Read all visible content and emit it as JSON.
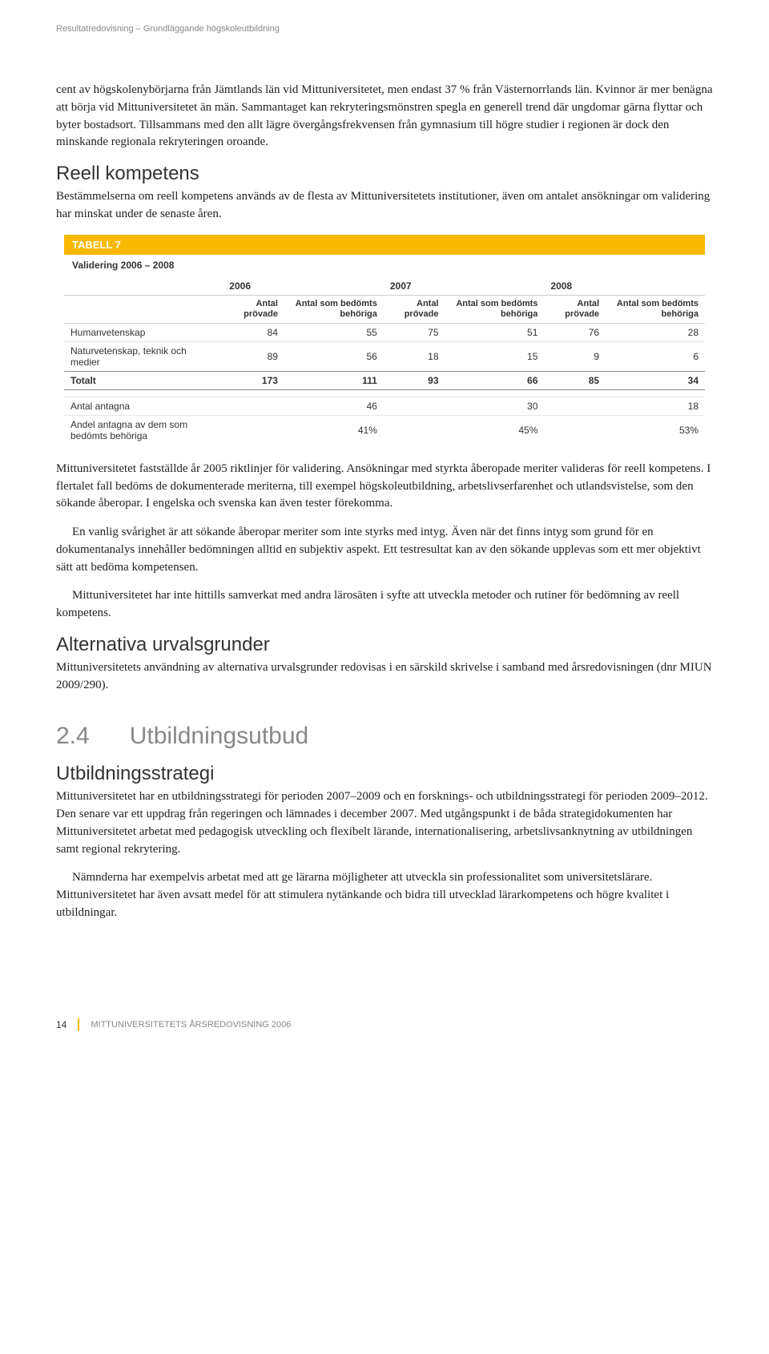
{
  "header": "Resultatredovisning – Grundläggande högskoleutbildning",
  "para1": "cent av högskolenybörjarna från Jämtlands län vid Mittuniversitetet, men endast 37 % från Västernorrlands län. Kvinnor är mer benägna att börja vid Mittuniversitetet än män. Sammantaget kan rekryteringsmönstren spegla en generell trend där ungdomar gärna flyttar och byter bostadsort. Tillsammans med den allt lägre övergångsfrekvensen från gymnasium till högre studier i regionen är dock den minskande regionala rekryteringen oroande.",
  "h2a": "Reell kompetens",
  "para2": "Bestämmelserna om reell kompetens används av de flesta av Mittuniversitetets institutioner, även om antalet ansökningar om validering har minskat under de senaste åren.",
  "table": {
    "title": "TABELL 7",
    "subtitle": "Validering 2006 – 2008",
    "years": [
      "2006",
      "2007",
      "2008"
    ],
    "colA": "Antal prövade",
    "colB": "Antal som bedömts behöriga",
    "rows": [
      {
        "label": "Humanvetenskap",
        "v": [
          "84",
          "55",
          "75",
          "51",
          "76",
          "28"
        ]
      },
      {
        "label": "Naturvetenskap, teknik och medier",
        "v": [
          "89",
          "56",
          "18",
          "15",
          "9",
          "6"
        ]
      }
    ],
    "total": {
      "label": "Totalt",
      "v": [
        "173",
        "111",
        "93",
        "66",
        "85",
        "34"
      ]
    },
    "extra1": {
      "label": "Antal antagna",
      "v": [
        "46",
        "30",
        "18"
      ]
    },
    "extra2": {
      "label": "Andel antagna av dem som bedömts behöriga",
      "v": [
        "41%",
        "45%",
        "53%"
      ]
    }
  },
  "para3": "Mittuniversitetet fastställde år 2005 riktlinjer för validering. Ansökningar med styrkta åberopade meriter valideras för reell kompetens. I flertalet fall bedöms de dokumenterade meriterna, till exempel högskoleutbildning, arbetslivserfarenhet och utlandsvistelse, som den sökande åberopar. I engelska och svenska kan även tester förekomma.",
  "para3b": "En vanlig svårighet är att sökande åberopar meriter som inte styrks med intyg. Även när det finns intyg som grund för en dokumentanalys innehåller bedömningen alltid en subjektiv aspekt. Ett testresultat kan av den sökande upplevas som ett mer objektivt sätt att bedöma kompetensen.",
  "para3c": "Mittuniversitetet har inte hittills samverkat med andra lärosäten i syfte att utveckla metoder och rutiner för bedömning av reell kompetens.",
  "h2b": "Alternativa urvalsgrunder",
  "para4": "Mittuniversitetets användning av alternativa urvalsgrunder redovisas i en särskild skrivelse i samband med årsredovisningen (dnr MIUN 2009/290).",
  "sectionNum": "2.4",
  "sectionTitle": "Utbildningsutbud",
  "h2c": "Utbildningsstrategi",
  "para5": "Mittuniversitetet har en utbildningsstrategi för perioden 2007–2009 och en forsknings- och utbildningsstrategi för perioden 2009–2012. Den senare var ett uppdrag från regeringen och lämnades i december 2007. Med utgångspunkt i de båda strategidokumenten har Mittuniversitetet arbetat med pedagogisk utveckling och flexibelt lärande, internationalisering, arbetslivsanknytning av utbildningen samt regional rekrytering.",
  "para5b": "Nämnderna har exempelvis arbetat med att ge lärarna möjligheter att utveckla sin professionalitet som universitetslärare. Mittuniversitetet har även avsatt medel för att stimulera nytänkande och bidra till utvecklad lärarkompetens och högre kvalitet i utbildningar.",
  "footer": {
    "page": "14",
    "text": "MITTUNIVERSITETETS ÅRSREDOVISNING 2006"
  }
}
